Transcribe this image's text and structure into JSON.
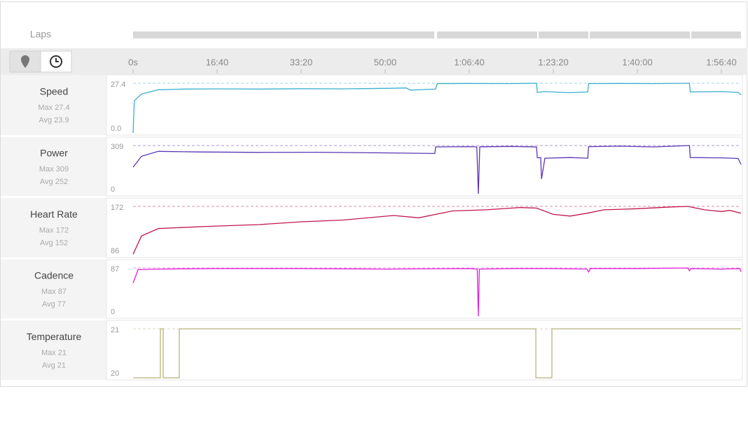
{
  "timeline": {
    "laps": {
      "label": "Laps",
      "segments": [
        {
          "start": 0,
          "end": 3600
        },
        {
          "start": 3600,
          "end": 4808
        },
        {
          "start": 4808,
          "end": 5417
        },
        {
          "start": 5417,
          "end": 6625
        },
        {
          "start": 6625,
          "end": 7233
        }
      ]
    },
    "xlim": [
      0,
      7233
    ],
    "xticks": [
      {
        "value": 0,
        "label": "0s"
      },
      {
        "value": 1000,
        "label": "16:40"
      },
      {
        "value": 2000,
        "label": "33:20"
      },
      {
        "value": 3000,
        "label": "50:00"
      },
      {
        "value": 4000,
        "label": "1:06:40"
      },
      {
        "value": 5000,
        "label": "1:23:20"
      },
      {
        "value": 6000,
        "label": "1:40:00"
      },
      {
        "value": 7000,
        "label": "1:56:40"
      }
    ]
  },
  "panels": [
    {
      "type": "line",
      "name": "Speed",
      "max_label": "Max 27.4",
      "avg_label": "Avg 23.9",
      "color": "#3bb0cf",
      "ylim": [
        0,
        27.4
      ],
      "yticks": [
        {
          "value": 0,
          "label": "0.0"
        },
        27.4
      ],
      "x": [
        0,
        15,
        100,
        300,
        600,
        1000,
        1500,
        2000,
        2500,
        3000,
        3250,
        3300,
        3600,
        3620,
        4000,
        4500,
        4800,
        4810,
        4900,
        5200,
        5410,
        5420,
        5800,
        6200,
        6620,
        6630,
        7000,
        7200,
        7233
      ],
      "values": [
        0,
        17.8,
        21.4,
        23.8,
        24.2,
        24.3,
        24.2,
        24.4,
        24.3,
        24.6,
        24.8,
        23.6,
        24.2,
        27.2,
        27.3,
        27.2,
        27.4,
        22.4,
        22.8,
        22.2,
        22.6,
        27.2,
        27.3,
        27.2,
        27.4,
        22.6,
        22.8,
        22.4,
        21.0
      ]
    },
    {
      "type": "line",
      "name": "Power",
      "max_label": "Max 309",
      "avg_label": "Avg 252",
      "color": "#5b35b5",
      "ylim": [
        0,
        309
      ],
      "yticks": [
        0,
        309
      ],
      "x": [
        0,
        100,
        300,
        800,
        1500,
        2200,
        3000,
        3590,
        3600,
        4000,
        4090,
        4108,
        4125,
        4500,
        4800,
        4810,
        4850,
        4860,
        4900,
        5200,
        5410,
        5420,
        5800,
        6200,
        6620,
        6630,
        7000,
        7200,
        7233
      ],
      "values": [
        170,
        240,
        272,
        268,
        265,
        266,
        262,
        258,
        300,
        302,
        300,
        0,
        301,
        303,
        300,
        230,
        232,
        95,
        228,
        232,
        228,
        302,
        305,
        300,
        309,
        232,
        230,
        226,
        188
      ]
    },
    {
      "type": "line",
      "name": "Heart Rate",
      "max_label": "Max 172",
      "avg_label": "Avg 152",
      "color": "#c0174a",
      "ylim": [
        86,
        172
      ],
      "yticks": [
        86,
        172
      ],
      "x": [
        0,
        100,
        300,
        900,
        1500,
        2000,
        2500,
        3100,
        3400,
        3600,
        3800,
        4200,
        4600,
        4800,
        5000,
        5200,
        5400,
        5600,
        6000,
        6400,
        6600,
        6800,
        7000,
        7100,
        7233
      ],
      "values": [
        88,
        120,
        133,
        137,
        140,
        145,
        148,
        156,
        152,
        158,
        164,
        166,
        170,
        169,
        158,
        155,
        160,
        166,
        168,
        171,
        172,
        166,
        163,
        165,
        160
      ]
    },
    {
      "type": "line",
      "name": "Cadence",
      "max_label": "Max 87",
      "avg_label": "Avg 77",
      "color": "#e01fd6",
      "ylim": [
        0,
        87
      ],
      "yticks": [
        0,
        87
      ],
      "x": [
        0,
        60,
        300,
        1000,
        2000,
        3000,
        4000,
        4095,
        4108,
        4120,
        4500,
        5000,
        5400,
        5420,
        5440,
        6000,
        6600,
        6620,
        6640,
        7000,
        7220,
        7233
      ],
      "values": [
        60,
        84,
        85,
        86,
        86,
        85,
        86,
        85,
        0,
        85,
        86,
        86,
        85,
        80,
        86,
        86,
        87,
        82,
        86,
        85,
        86,
        80
      ]
    },
    {
      "type": "line",
      "name": "Temperature",
      "max_label": "Max 21",
      "avg_label": "Avg 21",
      "color": "#b8b07a",
      "ylim": [
        20,
        21
      ],
      "yticks": [
        20,
        21
      ],
      "x": [
        0,
        325,
        325,
        358,
        358,
        550,
        550,
        4792,
        4792,
        4983,
        4983,
        7233
      ],
      "values": [
        20,
        20,
        21,
        21,
        20,
        20,
        21,
        21,
        20,
        20,
        21,
        21
      ]
    }
  ]
}
